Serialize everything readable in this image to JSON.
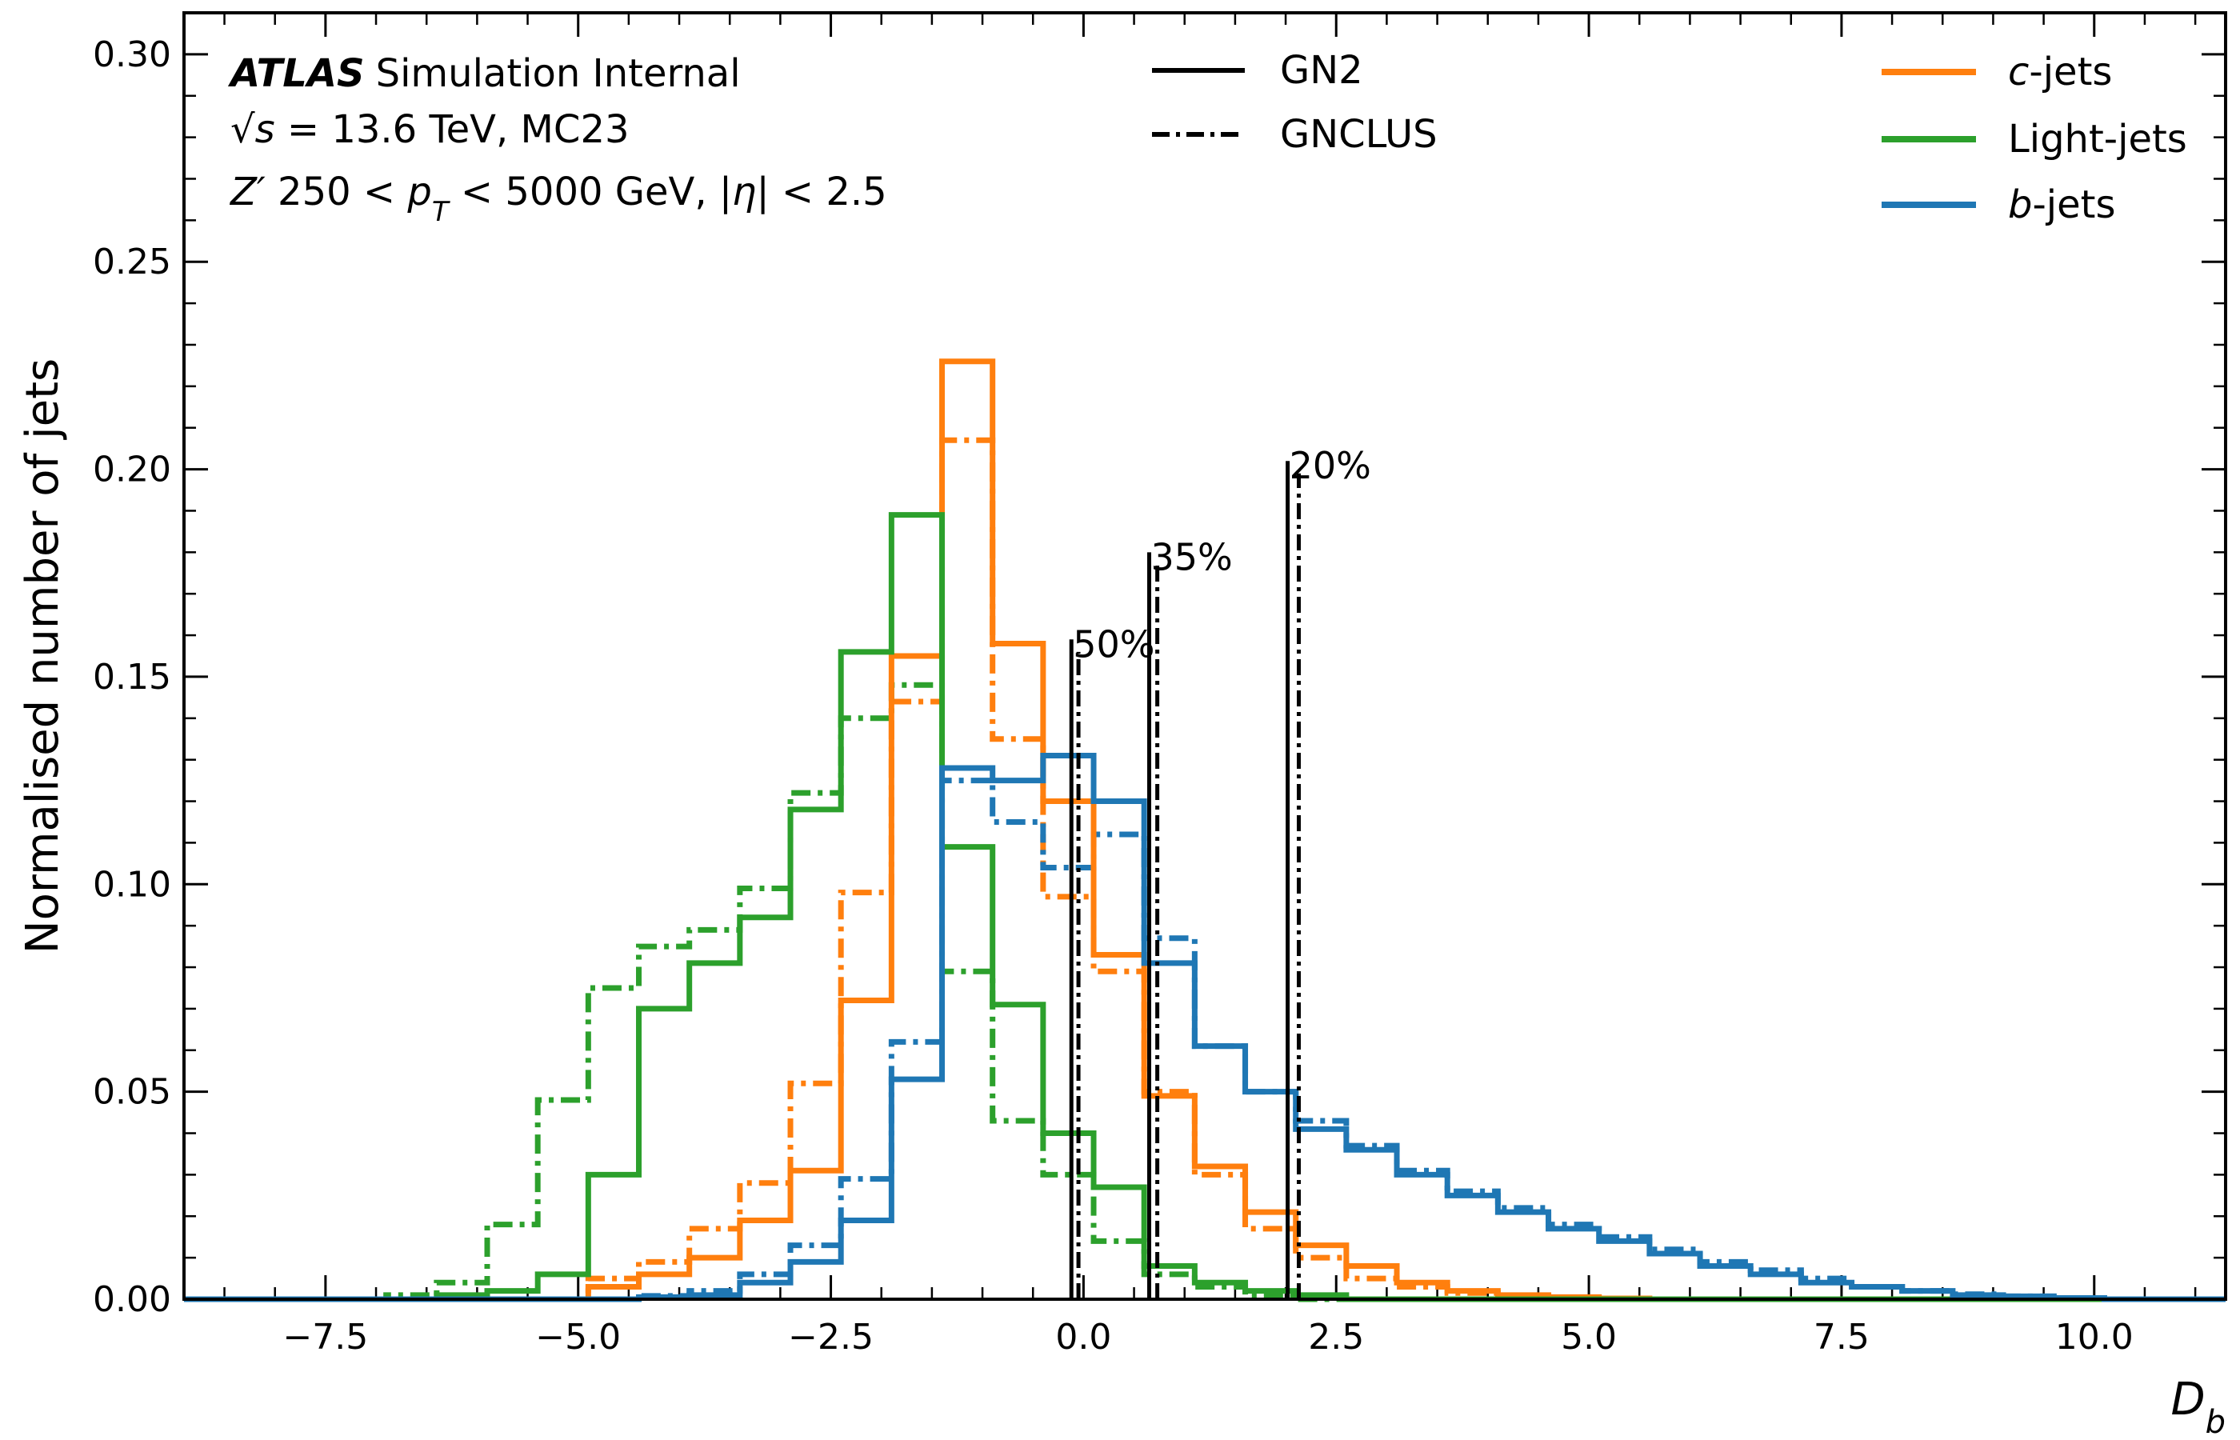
{
  "chart_data": {
    "type": "step-histogram",
    "xlabel": "D_b",
    "ylabel": "Normalised number of jets",
    "xlim": [
      -8.9,
      11.3
    ],
    "ylim": [
      0.0,
      0.31
    ],
    "xticks": [
      -7.5,
      -5.0,
      -2.5,
      0.0,
      2.5,
      5.0,
      7.5,
      10.0
    ],
    "xtick_labels": [
      "−7.5",
      "−5.0",
      "−2.5",
      "0.0",
      "2.5",
      "5.0",
      "7.5",
      "10.0"
    ],
    "yticks": [
      0.0,
      0.05,
      0.1,
      0.15,
      0.2,
      0.25,
      0.3
    ],
    "ytick_labels": [
      "0.00",
      "0.05",
      "0.10",
      "0.15",
      "0.20",
      "0.25",
      "0.30"
    ],
    "info": {
      "atlas": "ATLAS",
      "atlas_suffix": "Simulation Internal",
      "line2_sqrt": "√s",
      "line2_rest": " = 13.6 TeV, MC23",
      "line3_z": "Z′",
      "line3_a": " 250 < ",
      "line3_p": "p",
      "line3_sub": "T",
      "line3_b": " < 5000 GeV, |",
      "line3_eta": "η",
      "line3_c": "| < 2.5"
    },
    "style_legend": [
      {
        "label": "GN2",
        "dash": "solid"
      },
      {
        "label": "GNCLUS",
        "dash": "dashdot"
      }
    ],
    "flavour_legend": [
      {
        "prefix": "c",
        "suffix": "-jets",
        "color": "#ff7f0e"
      },
      {
        "prefix": "",
        "suffix": "Light-jets",
        "color": "#2ca02c"
      },
      {
        "prefix": "b",
        "suffix": "-jets",
        "color": "#1f77b4"
      }
    ],
    "series": [
      {
        "name": "c-jets GN2",
        "flavour": "c",
        "tagger": "GN2",
        "color": "#ff7f0e",
        "dash": "solid",
        "edges": [
          -4.9,
          -4.4,
          -3.9,
          -3.4,
          -2.9,
          -2.4,
          -1.9,
          -1.4,
          -0.9,
          -0.4,
          0.1,
          0.6,
          1.1,
          1.6,
          2.1,
          2.6,
          3.1,
          3.6,
          4.1,
          4.6,
          5.1,
          5.6
        ],
        "values": [
          0.003,
          0.006,
          0.01,
          0.019,
          0.031,
          0.072,
          0.155,
          0.226,
          0.158,
          0.12,
          0.083,
          0.049,
          0.032,
          0.021,
          0.013,
          0.008,
          0.004,
          0.002,
          0.001,
          0.0005,
          0.0002
        ]
      },
      {
        "name": "c-jets GNCLUS",
        "flavour": "c",
        "tagger": "GNCLUS",
        "color": "#ff7f0e",
        "dash": "dashdot",
        "edges": [
          -4.9,
          -4.4,
          -3.9,
          -3.4,
          -2.9,
          -2.4,
          -1.9,
          -1.4,
          -0.9,
          -0.4,
          0.1,
          0.6,
          1.1,
          1.6,
          2.1,
          2.6,
          3.1,
          3.6,
          4.1,
          4.6,
          5.1,
          5.6
        ],
        "values": [
          0.005,
          0.009,
          0.017,
          0.028,
          0.052,
          0.098,
          0.144,
          0.207,
          0.135,
          0.097,
          0.079,
          0.05,
          0.03,
          0.017,
          0.01,
          0.005,
          0.003,
          0.0015,
          0.0008,
          0.0004,
          0.0002
        ]
      },
      {
        "name": "Light-jets GN2",
        "flavour": "light",
        "tagger": "GN2",
        "color": "#2ca02c",
        "dash": "solid",
        "edges": [
          -6.4,
          -5.9,
          -5.4,
          -4.9,
          -4.4,
          -3.9,
          -3.4,
          -2.9,
          -2.4,
          -1.9,
          -1.4,
          -0.9,
          -0.4,
          0.1,
          0.6,
          1.1,
          1.6,
          2.1,
          2.6
        ],
        "values": [
          0.001,
          0.002,
          0.006,
          0.03,
          0.07,
          0.081,
          0.092,
          0.118,
          0.156,
          0.189,
          0.109,
          0.071,
          0.04,
          0.027,
          0.008,
          0.004,
          0.002,
          0.001
        ]
      },
      {
        "name": "Light-jets GNCLUS",
        "flavour": "light",
        "tagger": "GNCLUS",
        "color": "#2ca02c",
        "dash": "dashdot",
        "edges": [
          -6.9,
          -6.4,
          -5.9,
          -5.4,
          -4.9,
          -4.4,
          -3.9,
          -3.4,
          -2.9,
          -2.4,
          -1.9,
          -1.4,
          -0.9,
          -0.4,
          0.1,
          0.6,
          1.1,
          1.6,
          2.1
        ],
        "values": [
          0.001,
          0.004,
          0.018,
          0.048,
          0.075,
          0.085,
          0.089,
          0.099,
          0.122,
          0.14,
          0.148,
          0.079,
          0.043,
          0.03,
          0.014,
          0.006,
          0.003,
          0.001
        ]
      },
      {
        "name": "b-jets GN2",
        "flavour": "b",
        "tagger": "GN2",
        "color": "#1f77b4",
        "dash": "solid",
        "edges": [
          -4.4,
          -3.9,
          -3.4,
          -2.9,
          -2.4,
          -1.9,
          -1.4,
          -0.9,
          -0.4,
          0.1,
          0.6,
          1.1,
          1.6,
          2.1,
          2.6,
          3.1,
          3.6,
          4.1,
          4.6,
          5.1,
          5.6,
          6.1,
          6.6,
          7.1,
          7.6,
          8.1,
          8.6,
          9.1,
          9.6,
          10.1
        ],
        "values": [
          0.0005,
          0.001,
          0.004,
          0.009,
          0.019,
          0.053,
          0.128,
          0.125,
          0.131,
          0.12,
          0.081,
          0.061,
          0.05,
          0.041,
          0.036,
          0.03,
          0.025,
          0.021,
          0.017,
          0.014,
          0.011,
          0.008,
          0.006,
          0.004,
          0.003,
          0.002,
          0.001,
          0.0007,
          0.0003
        ]
      },
      {
        "name": "b-jets GNCLUS",
        "flavour": "b",
        "tagger": "GNCLUS",
        "color": "#1f77b4",
        "dash": "dashdot",
        "edges": [
          -4.4,
          -3.9,
          -3.4,
          -2.9,
          -2.4,
          -1.9,
          -1.4,
          -0.9,
          -0.4,
          0.1,
          0.6,
          1.1,
          1.6,
          2.1,
          2.6,
          3.1,
          3.6,
          4.1,
          4.6,
          5.1,
          5.6,
          6.1,
          6.6,
          7.1,
          7.6,
          8.1,
          8.6,
          9.1,
          9.6,
          10.1
        ],
        "values": [
          0.0008,
          0.002,
          0.006,
          0.013,
          0.029,
          0.062,
          0.125,
          0.115,
          0.104,
          0.112,
          0.087,
          0.061,
          0.05,
          0.043,
          0.037,
          0.031,
          0.026,
          0.022,
          0.018,
          0.015,
          0.012,
          0.009,
          0.007,
          0.005,
          0.003,
          0.002,
          0.0012,
          0.0007,
          0.0003
        ]
      }
    ],
    "working_points": [
      {
        "label": "50%",
        "gn2_x": -0.12,
        "gnclus_x": -0.05,
        "ymax": 0.159
      },
      {
        "label": "35%",
        "gn2_x": 0.65,
        "gnclus_x": 0.73,
        "ymax": 0.18
      },
      {
        "label": "20%",
        "gn2_x": 2.02,
        "gnclus_x": 2.13,
        "ymax": 0.202
      }
    ]
  }
}
